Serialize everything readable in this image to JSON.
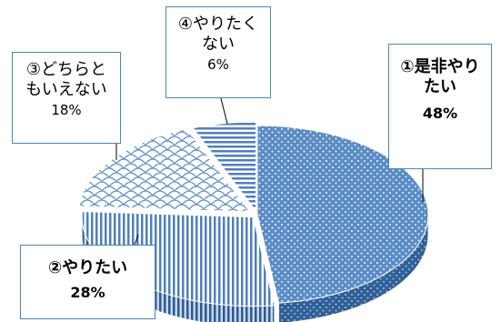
{
  "chart_data": {
    "type": "pie",
    "title": "",
    "slices": [
      {
        "label": "①是非やりたい",
        "value": 48,
        "value_label": "48%",
        "label_lines": [
          "①是非やり",
          "たい"
        ],
        "bold": true
      },
      {
        "label": "②やりたい",
        "value": 28,
        "value_label": "28%",
        "label_lines": [
          "②やりたい"
        ],
        "bold": true
      },
      {
        "label": "③どちらともいえない",
        "value": 18,
        "value_label": "18%",
        "label_lines": [
          "③どちらと",
          "もいえない"
        ],
        "bold": false
      },
      {
        "label": "④やりたくない",
        "value": 6,
        "value_label": "6%",
        "label_lines": [
          "④やりたく",
          "ない"
        ],
        "bold": false
      }
    ],
    "style": "3d-exploded-pie",
    "colors": {
      "slice1": "#5b8cc6",
      "slice2": "#4f7fbd",
      "slice3": "#e8eef7",
      "slice4": "#4f7fbd",
      "callout_border": "#4a86b4"
    }
  }
}
